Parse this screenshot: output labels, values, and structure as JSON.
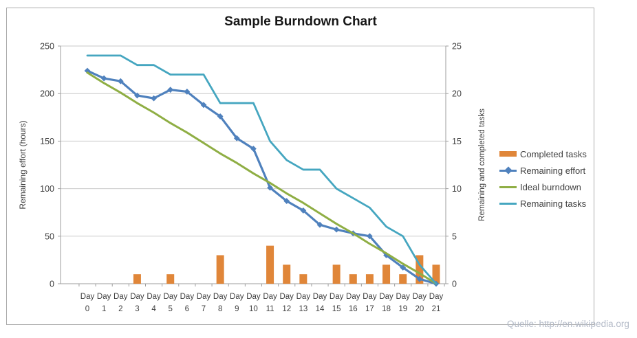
{
  "title": "Sample Burndown Chart",
  "source": "Quelle: http://en.wikipedia.org",
  "colors": {
    "completed": "#e08639",
    "effort": "#4f81bd",
    "ideal": "#8fae44",
    "tasks": "#45a6c0",
    "grid": "#c9c9c9",
    "axis": "#9e9e9e",
    "text": "#3f3f3f",
    "border": "#ababab",
    "source_text": "#b3bac7"
  },
  "chart_data": {
    "type": "combo bar + line",
    "title": "Sample Burndown Chart",
    "x_label_prefix": "Day",
    "x": [
      0,
      1,
      2,
      3,
      4,
      5,
      6,
      7,
      8,
      9,
      10,
      11,
      12,
      13,
      14,
      15,
      16,
      17,
      18,
      19,
      20,
      21
    ],
    "left_axis": {
      "label": "Remaining effort (hours)",
      "min": 0,
      "max": 250,
      "step": 50
    },
    "right_axis": {
      "label": "Remaining and completed tasks",
      "min": 0,
      "max": 25,
      "step": 5
    },
    "gridlines": "horizontal",
    "legend_position": "right",
    "series": [
      {
        "name": "Completed tasks",
        "type": "bar",
        "axis": "right",
        "color_key": "completed",
        "values": [
          null,
          null,
          null,
          1,
          null,
          1,
          null,
          null,
          3,
          null,
          null,
          4,
          2,
          1,
          null,
          2,
          1,
          1,
          2,
          1,
          3,
          2
        ]
      },
      {
        "name": "Remaining effort",
        "type": "line",
        "marker": "diamond",
        "axis": "left",
        "color_key": "effort",
        "values": [
          224,
          216,
          213,
          198,
          195,
          204,
          202,
          188,
          176,
          153,
          142,
          101,
          87,
          77,
          62,
          57,
          53,
          50,
          30,
          17,
          5,
          0
        ]
      },
      {
        "name": "Ideal burndown",
        "type": "line",
        "axis": "left",
        "color_key": "ideal",
        "values": [
          222,
          211,
          201,
          190,
          180,
          169,
          159,
          148,
          137,
          127,
          116,
          106,
          95,
          85,
          74,
          63,
          53,
          42,
          32,
          21,
          11,
          0
        ]
      },
      {
        "name": "Remaining tasks",
        "type": "line",
        "axis": "right",
        "color_key": "tasks",
        "values": [
          24,
          24,
          24,
          23,
          23,
          22,
          22,
          22,
          19,
          19,
          19,
          15,
          13,
          12,
          12,
          10,
          9,
          8,
          6,
          5,
          2,
          0
        ]
      }
    ]
  },
  "legend": [
    {
      "label": "Completed tasks",
      "swatch": "bar",
      "color_key": "completed"
    },
    {
      "label": "Remaining effort",
      "swatch": "line-diamond",
      "color_key": "effort"
    },
    {
      "label": "Ideal burndown",
      "swatch": "line",
      "color_key": "ideal"
    },
    {
      "label": "Remaining tasks",
      "swatch": "line",
      "color_key": "tasks"
    }
  ]
}
